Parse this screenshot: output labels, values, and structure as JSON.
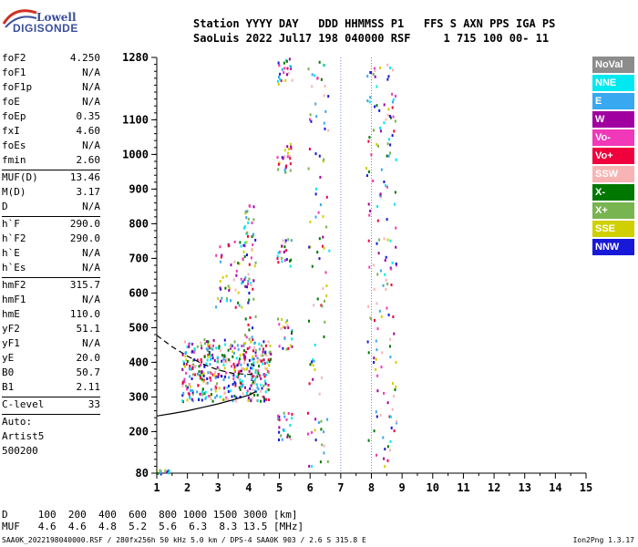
{
  "logo": {
    "line1": "Lowell",
    "line2": "DIGISONDE"
  },
  "header": {
    "line1": "Station YYYY DAY   DDD HHMMSS P1   FFS S AXN PPS IGA PS",
    "line2": "SaoLuis 2022 Jul17 198 040000 RSF     1 715 100 00- 11"
  },
  "params_group1": [
    {
      "label": "foF2",
      "value": "4.250"
    },
    {
      "label": "foF1",
      "value": "N/A"
    },
    {
      "label": "foF1p",
      "value": "N/A"
    },
    {
      "label": "foE",
      "value": "N/A"
    },
    {
      "label": "foEp",
      "value": "0.35"
    },
    {
      "label": "fxI",
      "value": "4.60"
    },
    {
      "label": "foEs",
      "value": "N/A"
    },
    {
      "label": "fmin",
      "value": "2.60"
    }
  ],
  "params_group2": [
    {
      "label": "MUF(D)",
      "value": "13.46"
    },
    {
      "label": "M(D)",
      "value": "3.17"
    },
    {
      "label": "D",
      "value": "N/A"
    }
  ],
  "params_group3": [
    {
      "label": "h`F",
      "value": "290.0"
    },
    {
      "label": "h`F2",
      "value": "290.0"
    },
    {
      "label": "h`E",
      "value": "N/A"
    },
    {
      "label": "h`Es",
      "value": "N/A"
    }
  ],
  "params_group4": [
    {
      "label": "hmF2",
      "value": "315.7"
    },
    {
      "label": "hmF1",
      "value": "N/A"
    },
    {
      "label": "hmE",
      "value": "110.0"
    },
    {
      "label": "yF2",
      "value": "51.1"
    },
    {
      "label": "yF1",
      "value": "N/A"
    },
    {
      "label": "yE",
      "value": "20.0"
    },
    {
      "label": "B0",
      "value": "50.7"
    },
    {
      "label": "B1",
      "value": "2.11"
    }
  ],
  "params_group5": [
    {
      "label": "C-level",
      "value": "33"
    }
  ],
  "auto_lines": [
    "Auto:",
    "Artist5",
    "500200"
  ],
  "legend": [
    {
      "label": "NoVal",
      "color": "#8c8c8c"
    },
    {
      "label": "NNE",
      "color": "#00e8f0"
    },
    {
      "label": "E",
      "color": "#38a8f0"
    },
    {
      "label": "W",
      "color": "#a000a0"
    },
    {
      "label": "Vo-",
      "color": "#f038b8"
    },
    {
      "label": "Vo+",
      "color": "#f0003c"
    },
    {
      "label": "SSW",
      "color": "#f8b4b4"
    },
    {
      "label": "X-",
      "color": "#007800"
    },
    {
      "label": "X+",
      "color": "#78b450"
    },
    {
      "label": "SSE",
      "color": "#d0d000"
    },
    {
      "label": "NNW",
      "color": "#1818d8"
    }
  ],
  "footer": {
    "line1": "D     100  200  400  600  800 1000 1500 3000 [km]",
    "line2": "MUF   4.6  4.6  4.8  5.2  5.6  6.3  8.3 13.5 [MHz]"
  },
  "bottom_line": "SAA0K_2022198040000.RSF / 280fx256h 50 kHz 5.0 km / DPS-4 SAA0K 903 / 2.6 S 315.8 E",
  "version": "Ion2Png 1.3.17",
  "chart_data": {
    "type": "scatter",
    "title": "",
    "xlabel": "",
    "ylabel": "",
    "xlim": [
      1,
      15
    ],
    "ylim": [
      80,
      1280
    ],
    "x_ticks": [
      1,
      2,
      3,
      4,
      5,
      6,
      7,
      8,
      9,
      10,
      11,
      12,
      13,
      14,
      15
    ],
    "y_ticks": [
      80,
      200,
      300,
      400,
      500,
      600,
      700,
      800,
      900,
      1000,
      1100,
      1280
    ],
    "vertical_dotted_lines": [
      7,
      8
    ],
    "grid": false,
    "profile_curve": [
      [
        1.0,
        245
      ],
      [
        1.5,
        252
      ],
      [
        2.0,
        260
      ],
      [
        2.5,
        270
      ],
      [
        3.0,
        280
      ],
      [
        3.5,
        292
      ],
      [
        4.0,
        305
      ],
      [
        4.25,
        316
      ]
    ],
    "dashed_curve": [
      [
        1.0,
        478
      ],
      [
        1.5,
        445
      ],
      [
        2.0,
        418
      ],
      [
        2.5,
        395
      ],
      [
        3.0,
        378
      ],
      [
        3.5,
        368
      ],
      [
        4.0,
        365
      ],
      [
        4.25,
        368
      ]
    ],
    "clusters": [
      {
        "name": "O-trace 1st hop",
        "x": [
          1.8,
          4.7
        ],
        "y": [
          290,
          470
        ],
        "density": 1.0
      },
      {
        "name": "upper spread",
        "x": [
          3.8,
          4.2
        ],
        "y": [
          470,
          860
        ],
        "density": 0.35
      },
      {
        "name": "W spread",
        "x": [
          2.9,
          4.0
        ],
        "y": [
          560,
          760
        ],
        "density": 0.25
      },
      {
        "name": "2nd hop 5MHz a",
        "x": [
          4.9,
          5.4
        ],
        "y": [
          180,
          260
        ],
        "density": 0.4
      },
      {
        "name": "2nd hop 5MHz b",
        "x": [
          4.9,
          5.4
        ],
        "y": [
          440,
          530
        ],
        "density": 0.4
      },
      {
        "name": "2nd hop 5MHz c",
        "x": [
          4.9,
          5.4
        ],
        "y": [
          680,
          760
        ],
        "density": 0.4
      },
      {
        "name": "2nd hop 5MHz d",
        "x": [
          4.9,
          5.4
        ],
        "y": [
          950,
          1040
        ],
        "density": 0.4
      },
      {
        "name": "2nd hop 5MHz e",
        "x": [
          4.9,
          5.4
        ],
        "y": [
          1200,
          1280
        ],
        "density": 0.4
      },
      {
        "name": "6MHz traces",
        "x": [
          5.9,
          6.6
        ],
        "y": [
          100,
          1280
        ],
        "density": 0.12
      },
      {
        "name": "8MHz traces",
        "x": [
          7.8,
          8.8
        ],
        "y": [
          100,
          1280
        ],
        "density": 0.15
      },
      {
        "name": "low echoes",
        "x": [
          1.0,
          1.4
        ],
        "y": [
          80,
          92
        ],
        "density": 0.5
      }
    ]
  }
}
